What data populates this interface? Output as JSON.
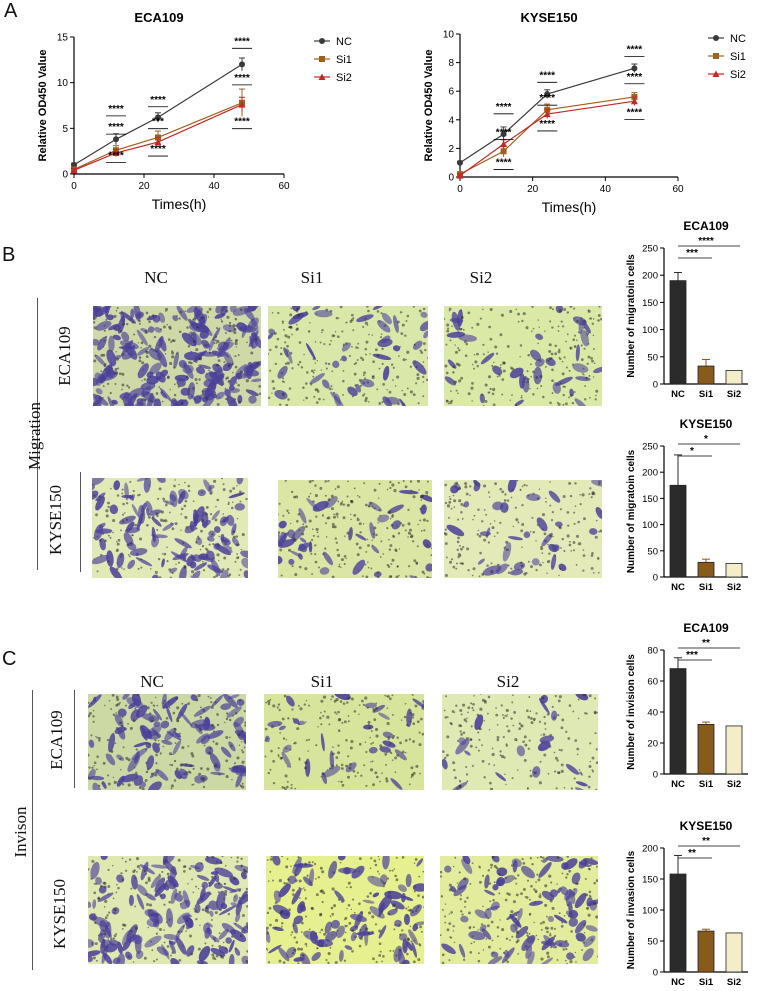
{
  "panels": {
    "a": "A",
    "b": "B",
    "c": "C"
  },
  "sections": {
    "migration": "Migration",
    "invasion": "Invison"
  },
  "groups": {
    "nc": "NC",
    "si1": "Si1",
    "si2": "Si2"
  },
  "cell_lines": {
    "eca": "ECA109",
    "kyse": "KYSE150"
  },
  "colors": {
    "nc": "#3a3a3a",
    "si1": "#a0601c",
    "si2": "#c62828",
    "bar_nc": "#2b2b2b",
    "bar_si1": "#8a5a1a",
    "bar_si2": "#f3eec9",
    "micro_bg": "#d8e6a0",
    "stain": "#4a3f9a"
  },
  "chart_data": [
    {
      "type": "line",
      "title": "ECA109",
      "xlabel": "Times(h)",
      "ylabel": "Relative OD450 Value",
      "xlim": [
        0,
        60
      ],
      "ylim": [
        0,
        15
      ],
      "xticks": [
        "0",
        "20",
        "40",
        "60"
      ],
      "yticks": [
        "0",
        "5",
        "10",
        "15"
      ],
      "x": [
        0,
        12,
        24,
        48
      ],
      "series": [
        {
          "name": "NC",
          "values": [
            1.0,
            3.8,
            6.2,
            12.0
          ],
          "errors": [
            0.2,
            0.6,
            0.5,
            0.7
          ]
        },
        {
          "name": "Si1",
          "values": [
            0.5,
            2.6,
            4.0,
            7.8
          ],
          "errors": [
            0.2,
            0.5,
            0.7,
            1.5
          ]
        },
        {
          "name": "Si2",
          "values": [
            0.4,
            2.3,
            3.5,
            7.6
          ],
          "errors": [
            0.2,
            0.4,
            0.5,
            0.8
          ]
        }
      ],
      "annotations": [
        {
          "x": 12,
          "y": 6.8,
          "text": "****"
        },
        {
          "x": 12,
          "y": 4.8,
          "text": "****"
        },
        {
          "x": 12,
          "y": 1.7,
          "text": "****"
        },
        {
          "x": 24,
          "y": 7.8,
          "text": "****"
        },
        {
          "x": 24,
          "y": 5.4,
          "text": "***"
        },
        {
          "x": 24,
          "y": 2.4,
          "text": "****"
        },
        {
          "x": 48,
          "y": 14.2,
          "text": "****"
        },
        {
          "x": 48,
          "y": 10.2,
          "text": "****"
        },
        {
          "x": 48,
          "y": 5.4,
          "text": "****"
        }
      ]
    },
    {
      "type": "line",
      "title": "KYSE150",
      "xlabel": "Times(h)",
      "ylabel": "Relative OD450 Value",
      "xlim": [
        0,
        60
      ],
      "ylim": [
        0,
        10
      ],
      "xticks": [
        "0",
        "20",
        "40",
        "60"
      ],
      "yticks": [
        "0",
        "2",
        "4",
        "6",
        "8",
        "10"
      ],
      "x": [
        0,
        12,
        24,
        48
      ],
      "series": [
        {
          "name": "NC",
          "values": [
            1.0,
            3.0,
            5.8,
            7.6
          ],
          "errors": [
            0.1,
            0.5,
            0.3,
            0.3
          ]
        },
        {
          "name": "Si1",
          "values": [
            0.2,
            1.8,
            4.7,
            5.6
          ],
          "errors": [
            0.1,
            0.4,
            0.4,
            0.3
          ]
        },
        {
          "name": "Si2",
          "values": [
            0.1,
            2.3,
            4.4,
            5.3
          ],
          "errors": [
            0.1,
            0.3,
            0.3,
            0.3
          ]
        }
      ],
      "annotations": [
        {
          "x": 12,
          "y": 4.7,
          "text": "****"
        },
        {
          "x": 12,
          "y": 2.9,
          "text": "****"
        },
        {
          "x": 12,
          "y": 0.8,
          "text": "****"
        },
        {
          "x": 24,
          "y": 6.9,
          "text": "****"
        },
        {
          "x": 24,
          "y": 5.3,
          "text": "****"
        },
        {
          "x": 24,
          "y": 3.5,
          "text": "****"
        },
        {
          "x": 48,
          "y": 8.7,
          "text": "****"
        },
        {
          "x": 48,
          "y": 6.8,
          "text": "****"
        },
        {
          "x": 48,
          "y": 4.3,
          "text": "****"
        }
      ]
    },
    {
      "type": "bar",
      "title": "ECA109",
      "ylabel": "Number of migratoin cells",
      "categories": [
        "NC",
        "Si1",
        "Si2"
      ],
      "values": [
        190,
        33,
        25
      ],
      "errors": [
        15,
        12,
        0
      ],
      "ylim": [
        0,
        250
      ],
      "yticks": [
        "0",
        "50",
        "100",
        "150",
        "200",
        "250"
      ],
      "sig": [
        {
          "from": 0,
          "to": 1,
          "text": "***"
        },
        {
          "from": 0,
          "to": 2,
          "text": "****"
        }
      ]
    },
    {
      "type": "bar",
      "title": "KYSE150",
      "ylabel": "Number of migratoin cells",
      "categories": [
        "NC",
        "Si1",
        "Si2"
      ],
      "values": [
        175,
        28,
        26
      ],
      "errors": [
        58,
        6,
        0
      ],
      "ylim": [
        0,
        250
      ],
      "yticks": [
        "0",
        "50",
        "100",
        "150",
        "200",
        "250"
      ],
      "sig": [
        {
          "from": 0,
          "to": 1,
          "text": "*"
        },
        {
          "from": 0,
          "to": 2,
          "text": "*"
        }
      ]
    },
    {
      "type": "bar",
      "title": "ECA109",
      "ylabel": "Number of invision cells",
      "categories": [
        "NC",
        "Si1",
        "Si2"
      ],
      "values": [
        68,
        32,
        31
      ],
      "errors": [
        7,
        1.5,
        0
      ],
      "ylim": [
        0,
        80
      ],
      "yticks": [
        "0",
        "20",
        "40",
        "60",
        "80"
      ],
      "sig": [
        {
          "from": 0,
          "to": 1,
          "text": "***"
        },
        {
          "from": 0,
          "to": 2,
          "text": "**"
        }
      ]
    },
    {
      "type": "bar",
      "title": "KYSE150",
      "ylabel": "Number of invasion cells",
      "categories": [
        "NC",
        "Si1",
        "Si2"
      ],
      "values": [
        158,
        66,
        63
      ],
      "errors": [
        30,
        3,
        0
      ],
      "ylim": [
        0,
        200
      ],
      "yticks": [
        "0",
        "50",
        "100",
        "150",
        "200"
      ],
      "sig": [
        {
          "from": 0,
          "to": 1,
          "text": "**"
        },
        {
          "from": 0,
          "to": 2,
          "text": "**"
        }
      ]
    }
  ]
}
